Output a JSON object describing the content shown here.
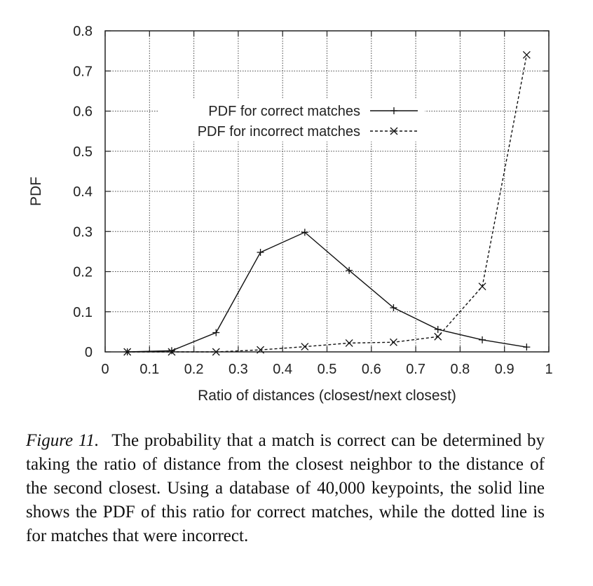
{
  "chart_data": {
    "type": "line",
    "title": "",
    "xlabel": "Ratio of distances (closest/next closest)",
    "ylabel": "PDF",
    "xlim": [
      0,
      1
    ],
    "ylim": [
      0,
      0.8
    ],
    "xticks": [
      "0",
      "0.1",
      "0.2",
      "0.3",
      "0.4",
      "0.5",
      "0.6",
      "0.7",
      "0.8",
      "0.9",
      "1"
    ],
    "yticks": [
      "0",
      "0.1",
      "0.2",
      "0.3",
      "0.4",
      "0.5",
      "0.6",
      "0.7",
      "0.8"
    ],
    "grid": true,
    "legend_position": "top-center",
    "series": [
      {
        "name": "PDF for correct matches",
        "style": "solid",
        "marker": "plus",
        "x": [
          0.05,
          0.15,
          0.25,
          0.35,
          0.45,
          0.55,
          0.65,
          0.75,
          0.85,
          0.95
        ],
        "y": [
          0.0,
          0.003,
          0.048,
          0.248,
          0.298,
          0.203,
          0.11,
          0.056,
          0.03,
          0.012
        ]
      },
      {
        "name": "PDF for incorrect matches",
        "style": "dashed",
        "marker": "cross",
        "x": [
          0.05,
          0.15,
          0.25,
          0.35,
          0.45,
          0.55,
          0.65,
          0.75,
          0.85,
          0.95
        ],
        "y": [
          0.0,
          0.0,
          0.0,
          0.005,
          0.013,
          0.022,
          0.024,
          0.038,
          0.163,
          0.74
        ]
      }
    ]
  },
  "caption": {
    "label": "Figure 11.",
    "text": "The probability that a match is correct can be determined by taking the ratio of distance from the closest neighbor to the distance of the second closest. Using a database of 40,000 keypoints, the solid line shows the PDF of this ratio for correct matches, while the dotted line is for matches that were incorrect."
  }
}
